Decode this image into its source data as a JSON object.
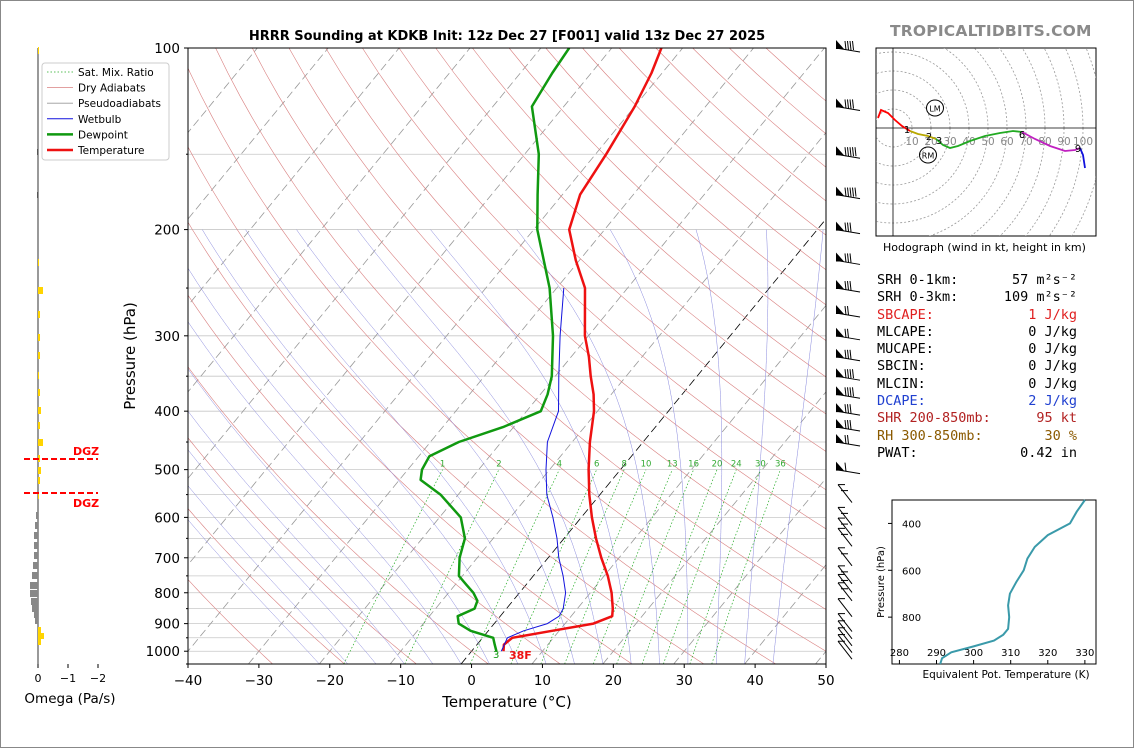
{
  "chart_data": [
    {
      "type": "line",
      "subtype": "skew-t",
      "title": "HRRR Sounding at KDKB Init: 12z Dec 27 [F001] valid 13z Dec 27 2025",
      "xlabel": "Temperature (°C)",
      "ylabel": "Pressure (hPa)",
      "xlim": [
        -40,
        50
      ],
      "ylim": [
        1050,
        100
      ],
      "yscale": "log",
      "x_ticks": [
        "−40",
        "−30",
        "−20",
        "−10",
        "0",
        "10",
        "20",
        "30",
        "40",
        "50"
      ],
      "y_ticks": [
        "100",
        "200",
        "300",
        "400",
        "500",
        "600",
        "700",
        "800",
        "900",
        "1000"
      ],
      "legend_position": "top-left",
      "legend": [
        "Sat. Mix. Ratio",
        "Dry Adiabats",
        "Pseudoadiabats",
        "Wetbulb",
        "Dewpoint",
        "Temperature"
      ],
      "mixing_ratio_labels": [
        "1",
        "2",
        "4",
        "6",
        "8",
        "10",
        "13",
        "16",
        "20",
        "24",
        "30",
        "36"
      ],
      "surface_temp_label": "38F",
      "series": [
        {
          "name": "Temperature",
          "color": "#ee1111",
          "points": [
            [
              1000,
              4.5
            ],
            [
              975,
              3.8
            ],
            [
              950,
              4.2
            ],
            [
              925,
              9.0
            ],
            [
              900,
              14.0
            ],
            [
              875,
              15.8
            ],
            [
              850,
              15.0
            ],
            [
              800,
              13.0
            ],
            [
              750,
              10.5
            ],
            [
              700,
              7.5
            ],
            [
              650,
              4.5
            ],
            [
              600,
              1.5
            ],
            [
              550,
              -1.5
            ],
            [
              500,
              -4.5
            ],
            [
              450,
              -7.5
            ],
            [
              400,
              -10.5
            ],
            [
              375,
              -12.5
            ],
            [
              350,
              -15.0
            ],
            [
              325,
              -17.5
            ],
            [
              300,
              -20.5
            ],
            [
              250,
              -26.0
            ],
            [
              225,
              -30.5
            ],
            [
              200,
              -35.0
            ],
            [
              175,
              -37.5
            ],
            [
              150,
              -38.5
            ],
            [
              125,
              -40.0
            ],
            [
              110,
              -41.5
            ],
            [
              100,
              -43.0
            ]
          ]
        },
        {
          "name": "Dewpoint",
          "color": "#109910",
          "points": [
            [
              1000,
              3.5
            ],
            [
              975,
              2.5
            ],
            [
              950,
              1.5
            ],
            [
              925,
              -2.5
            ],
            [
              900,
              -5.0
            ],
            [
              875,
              -6.0
            ],
            [
              850,
              -4.5
            ],
            [
              825,
              -5.0
            ],
            [
              800,
              -6.5
            ],
            [
              775,
              -8.5
            ],
            [
              750,
              -10.5
            ],
            [
              700,
              -12.5
            ],
            [
              650,
              -14.0
            ],
            [
              600,
              -17.0
            ],
            [
              550,
              -22.5
            ],
            [
              520,
              -27.0
            ],
            [
              500,
              -28.0
            ],
            [
              475,
              -28.5
            ],
            [
              450,
              -26.0
            ],
            [
              425,
              -21.5
            ],
            [
              400,
              -18.0
            ],
            [
              375,
              -19.0
            ],
            [
              350,
              -20.5
            ],
            [
              300,
              -25.0
            ],
            [
              250,
              -31.0
            ],
            [
              200,
              -39.5
            ],
            [
              175,
              -43.5
            ],
            [
              150,
              -48.0
            ],
            [
              125,
              -54.5
            ],
            [
              110,
              -55.5
            ],
            [
              100,
              -56.0
            ]
          ]
        },
        {
          "name": "Wetbulb",
          "color": "#1111dd",
          "points": [
            [
              1000,
              4.2
            ],
            [
              950,
              3.5
            ],
            [
              925,
              5.0
            ],
            [
              900,
              7.5
            ],
            [
              875,
              8.3
            ],
            [
              850,
              8.0
            ],
            [
              800,
              6.5
            ],
            [
              750,
              4.2
            ],
            [
              700,
              1.5
            ],
            [
              650,
              -1.0
            ],
            [
              600,
              -4.0
            ],
            [
              550,
              -7.5
            ],
            [
              500,
              -10.5
            ],
            [
              450,
              -13.5
            ],
            [
              400,
              -15.5
            ],
            [
              350,
              -19.5
            ],
            [
              300,
              -24.0
            ],
            [
              250,
              -29.0
            ]
          ]
        }
      ],
      "wind_barbs_visible": true,
      "dgz_markers": [
        "DGZ",
        "DGZ"
      ]
    },
    {
      "type": "bar",
      "orientation": "horizontal",
      "xlabel": "Omega (Pa/s)",
      "x_ticks": [
        "0",
        "−1",
        "−2"
      ],
      "xlim": [
        0.3,
        -2.5
      ],
      "dgz_labels": [
        "DGZ",
        "DGZ"
      ]
    },
    {
      "type": "line",
      "subtype": "hodograph",
      "caption": "Hodograph (wind in kt, height in km)",
      "ring_labels": [
        "10",
        "20",
        "30",
        "40",
        "50",
        "60",
        "70",
        "80",
        "90",
        "100"
      ],
      "height_labels": [
        "1",
        "2",
        "3",
        "6",
        "9"
      ],
      "motion_labels": [
        "LM",
        "RM"
      ]
    },
    {
      "type": "line",
      "xlabel": "Equivalent Pot. Temperature (K)",
      "ylabel": "Pressure (hPa)",
      "x_ticks": [
        "280",
        "290",
        "300",
        "310",
        "320",
        "330"
      ],
      "y_ticks": [
        "400",
        "600",
        "800"
      ],
      "xlim": [
        278,
        333
      ],
      "ylim": [
        1000,
        300
      ],
      "series": [
        {
          "color": "#3a9aaa",
          "points": [
            [
              1000,
              291
            ],
            [
              975,
              291.5
            ],
            [
              950,
              294
            ],
            [
              925,
              300
            ],
            [
              900,
              305.5
            ],
            [
              875,
              308
            ],
            [
              850,
              309.3
            ],
            [
              800,
              309.6
            ],
            [
              750,
              309.3
            ],
            [
              700,
              309.8
            ],
            [
              650,
              311.5
            ],
            [
              600,
              313.5
            ],
            [
              550,
              314.5
            ],
            [
              500,
              316.5
            ],
            [
              450,
              320
            ],
            [
              400,
              326
            ],
            [
              350,
              327.8
            ],
            [
              300,
              330
            ]
          ]
        }
      ]
    }
  ],
  "brand": "TROPICALTIDBITS.COM",
  "stats": [
    {
      "label": "SRH 0-1km:",
      "value": "57 m²s⁻²",
      "color": "#000000"
    },
    {
      "label": "SRH 0-3km:",
      "value": "109 m²s⁻²",
      "color": "#000000"
    },
    {
      "label": "SBCAPE:",
      "value": "1 J/kg",
      "color": "#e02020"
    },
    {
      "label": "MLCAPE:",
      "value": "0 J/kg",
      "color": "#000000"
    },
    {
      "label": "MUCAPE:",
      "value": "0 J/kg",
      "color": "#000000"
    },
    {
      "label": "SBCIN:",
      "value": "0 J/kg",
      "color": "#000000"
    },
    {
      "label": "MLCIN:",
      "value": "0 J/kg",
      "color": "#000000"
    },
    {
      "label": "DCAPE:",
      "value": "2 J/kg",
      "color": "#2040d0"
    },
    {
      "label": "SHR 200-850mb:",
      "value": "95 kt",
      "color": "#b22222"
    },
    {
      "label": "RH 300-850mb:",
      "value": "30 %",
      "color": "#8b5a00"
    },
    {
      "label": "PWAT:",
      "value": "0.42 in",
      "color": "#000000"
    }
  ]
}
